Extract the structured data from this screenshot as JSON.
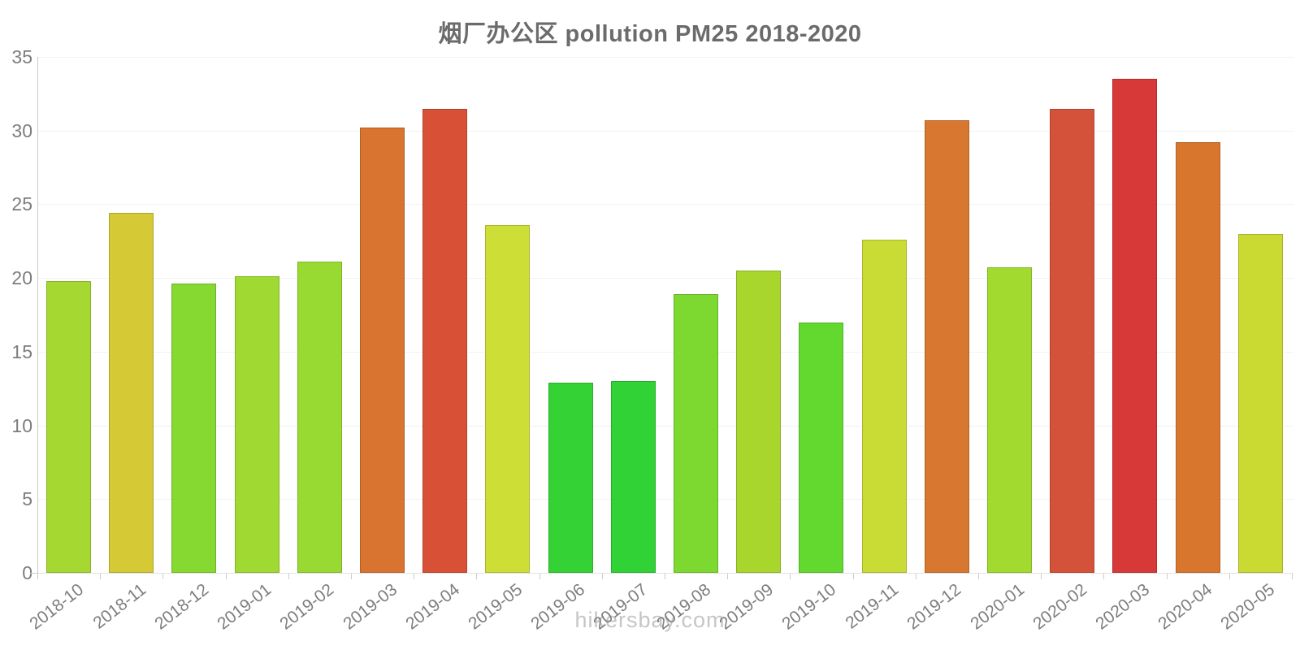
{
  "footer": {
    "text": "hikersbay.com"
  },
  "colors": {
    "background": "#ffffff",
    "title_text": "#6b6b6b",
    "axis_line": "#c9c9c9",
    "baseline": "#e2e2e2",
    "gridline": "#f2f2f2",
    "tick": "#cccccc",
    "tick_label_text": "#7d7d7d",
    "watermark_text": "#c6c6c6"
  },
  "chart_data": {
    "type": "bar",
    "title": "烟厂办公区 pollution PM25 2018-2020",
    "xlabel": "",
    "ylabel": "",
    "legend": "none",
    "grid": "horizontal-faint",
    "ylim": [
      0,
      35
    ],
    "yticks": [
      0,
      5,
      10,
      15,
      20,
      25,
      30,
      35
    ],
    "x_tick_label_rotation_deg": -38,
    "categories": [
      "2018-10",
      "2018-11",
      "2018-12",
      "2019-01",
      "2019-02",
      "2019-03",
      "2019-04",
      "2019-05",
      "2019-06",
      "2019-07",
      "2019-08",
      "2019-09",
      "2019-10",
      "2019-11",
      "2019-12",
      "2020-01",
      "2020-02",
      "2020-03",
      "2020-04",
      "2020-05"
    ],
    "values": [
      19.8,
      24.4,
      19.6,
      20.1,
      21.1,
      30.2,
      31.5,
      23.6,
      12.9,
      13.0,
      18.9,
      20.5,
      17.0,
      22.6,
      30.7,
      20.7,
      31.5,
      33.5,
      29.2,
      23.0
    ],
    "bar_colors": [
      "#a5d830",
      "#d5c935",
      "#86d930",
      "#a0d931",
      "#98da31",
      "#d8742f",
      "#d85136",
      "#cdde36",
      "#34d235",
      "#30d235",
      "#7dd92f",
      "#a8d62d",
      "#63d82e",
      "#c9dc35",
      "#d8772f",
      "#a3da30",
      "#d5523a",
      "#d73838",
      "#d8762e",
      "#cbda33"
    ]
  }
}
